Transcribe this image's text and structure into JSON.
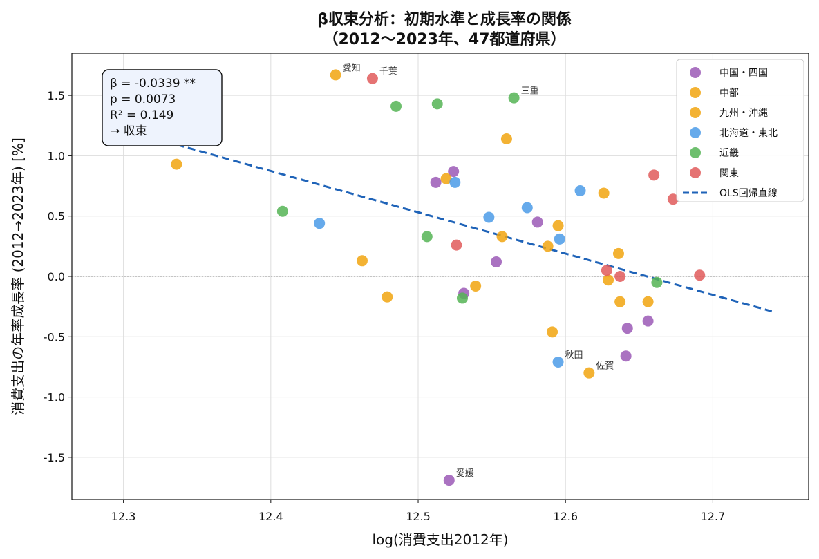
{
  "chart_data": {
    "type": "scatter",
    "title_lines": [
      "β収束分析：初期水準と成長率の関係",
      "（2012〜2023年、47都道府県）"
    ],
    "xlabel": "log(消費支出2012年)",
    "ylabel": "消費支出の年率成長率 (2012→2023年) [%]",
    "xlim": [
      12.265,
      12.765
    ],
    "ylim": [
      -1.85,
      1.85
    ],
    "x_ticks": [
      12.3,
      12.4,
      12.5,
      12.6,
      12.7
    ],
    "x_tick_labels": [
      "12.3",
      "12.4",
      "12.5",
      "12.6",
      "12.7"
    ],
    "y_ticks": [
      -1.5,
      -1.0,
      -0.5,
      0.0,
      0.5,
      1.0,
      1.5
    ],
    "y_tick_labels": [
      "-1.5",
      "-1.0",
      "-0.5",
      "0.0",
      "0.5",
      "1.0",
      "1.5"
    ],
    "grid": true,
    "zero_line": true,
    "legend_placement": "top-right",
    "series": [
      {
        "name": "中国・四国",
        "color": "#9b59b6",
        "points": [
          {
            "x": 12.512,
            "y": 0.78
          },
          {
            "x": 12.524,
            "y": 0.87
          },
          {
            "x": 12.531,
            "y": -0.14
          },
          {
            "x": 12.553,
            "y": 0.12
          },
          {
            "x": 12.581,
            "y": 0.45
          },
          {
            "x": 12.642,
            "y": -0.43
          },
          {
            "x": 12.641,
            "y": -0.66
          },
          {
            "x": 12.656,
            "y": -0.37
          },
          {
            "x": 12.521,
            "y": -1.69,
            "label": "愛媛"
          }
        ]
      },
      {
        "name": "中部",
        "color": "#f1a40f",
        "points": [
          {
            "x": 12.336,
            "y": 0.93
          },
          {
            "x": 12.444,
            "y": 1.67,
            "label": "愛知"
          },
          {
            "x": 12.462,
            "y": 0.13
          },
          {
            "x": 12.479,
            "y": -0.17
          },
          {
            "x": 12.519,
            "y": 0.81
          },
          {
            "x": 12.539,
            "y": -0.08
          },
          {
            "x": 12.56,
            "y": 1.14
          },
          {
            "x": 12.557,
            "y": 0.33
          },
          {
            "x": 12.588,
            "y": 0.25
          },
          {
            "x": 12.595,
            "y": 0.42
          },
          {
            "x": 12.591,
            "y": -0.46
          }
        ]
      },
      {
        "name": "九州・沖縄",
        "color": "#f1a40f",
        "points": [
          {
            "x": 12.626,
            "y": 0.69
          },
          {
            "x": 12.629,
            "y": -0.03
          },
          {
            "x": 12.636,
            "y": 0.19
          },
          {
            "x": 12.637,
            "y": -0.21
          },
          {
            "x": 12.656,
            "y": -0.21
          },
          {
            "x": 12.616,
            "y": -0.8,
            "label": "佐賀"
          }
        ]
      },
      {
        "name": "北海道・東北",
        "color": "#4b9be8",
        "points": [
          {
            "x": 12.433,
            "y": 0.44
          },
          {
            "x": 12.525,
            "y": 0.78
          },
          {
            "x": 12.548,
            "y": 0.49
          },
          {
            "x": 12.574,
            "y": 0.57
          },
          {
            "x": 12.596,
            "y": 0.31
          },
          {
            "x": 12.61,
            "y": 0.71
          },
          {
            "x": 12.595,
            "y": -0.71,
            "label": "秋田"
          }
        ]
      },
      {
        "name": "近畿",
        "color": "#55b455",
        "points": [
          {
            "x": 12.408,
            "y": 0.54
          },
          {
            "x": 12.485,
            "y": 1.41
          },
          {
            "x": 12.513,
            "y": 1.43
          },
          {
            "x": 12.565,
            "y": 1.48,
            "label": "三重"
          },
          {
            "x": 12.506,
            "y": 0.33
          },
          {
            "x": 12.53,
            "y": -0.18
          },
          {
            "x": 12.662,
            "y": -0.05
          }
        ]
      },
      {
        "name": "関東",
        "color": "#e05a5a",
        "points": [
          {
            "x": 12.469,
            "y": 1.64,
            "label": "千葉"
          },
          {
            "x": 12.526,
            "y": 0.26
          },
          {
            "x": 12.628,
            "y": 0.05
          },
          {
            "x": 12.637,
            "y": 0.0
          },
          {
            "x": 12.66,
            "y": 0.84
          },
          {
            "x": 12.673,
            "y": 0.64
          },
          {
            "x": 12.691,
            "y": 0.01
          }
        ]
      }
    ],
    "regression": {
      "name": "OLS回帰直線",
      "color": "#1f63b8",
      "x": [
        12.29,
        12.74
      ],
      "y": [
        1.25,
        -0.29
      ]
    },
    "stats_box": {
      "lines": [
        "β = -0.0339 **",
        "p = 0.0073",
        "R² = 0.149",
        "→ 収束"
      ]
    }
  }
}
